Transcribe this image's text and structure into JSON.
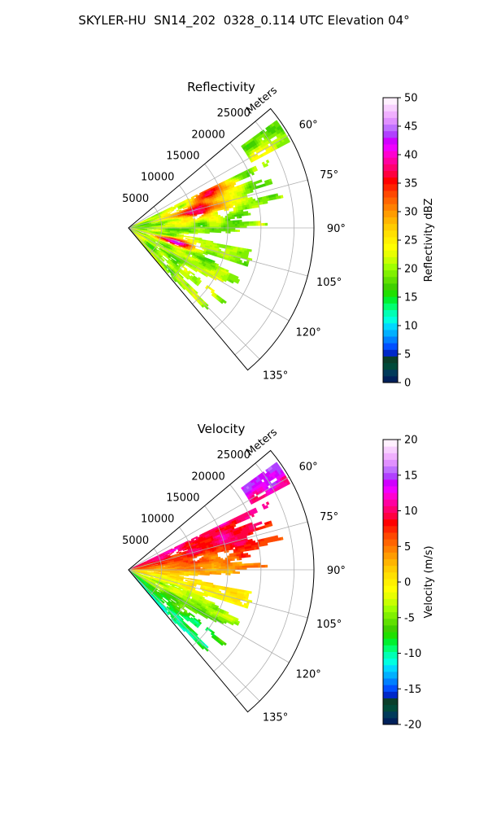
{
  "suptitle": "SKYLER-HU  SN14_202  0328_0.114 UTC Elevation 04°",
  "chart_data": [
    {
      "type": "heatmap",
      "projection": "polar-sector",
      "title": "Reflectivity",
      "radial_label": "Meters",
      "theta_range_deg": [
        50,
        140
      ],
      "r_range_m": [
        0,
        28000
      ],
      "radial_ticks": [
        5000,
        10000,
        15000,
        20000,
        25000
      ],
      "angle_ticks": [
        60,
        75,
        90,
        105,
        120,
        135
      ],
      "angle_tick_labels": [
        "60°",
        "75°",
        "90°",
        "105°",
        "120°",
        "135°"
      ],
      "grid": true,
      "colorbar": {
        "label": "Reflectivity dBZ",
        "vmin": 0,
        "vmax": 50,
        "ticks": [
          0,
          5,
          10,
          15,
          20,
          25,
          30,
          35,
          40,
          45,
          50
        ],
        "colors": [
          "#00205a",
          "#003a5a",
          "#004a3a",
          "#0a3e2a",
          "#0028c8",
          "#0050ff",
          "#0080ff",
          "#00b0ff",
          "#00d8ff",
          "#00ffe0",
          "#00ffb4",
          "#00ff70",
          "#00f030",
          "#20e000",
          "#40d000",
          "#60e000",
          "#80f000",
          "#a0ff00",
          "#c8ff00",
          "#e8ff00",
          "#ffff00",
          "#fff000",
          "#ffe000",
          "#ffcc00",
          "#ffb400",
          "#ff9c00",
          "#ff8000",
          "#ff6400",
          "#ff4800",
          "#ff2400",
          "#ff0000",
          "#ff0040",
          "#ff0070",
          "#ff00a0",
          "#ff00d0",
          "#f000ff",
          "#d000ff",
          "#b040ff",
          "#c070ff",
          "#e090ff",
          "#f0b0ff",
          "#f8d0ff",
          "#fff0ff"
        ]
      },
      "field": "reflectivity",
      "observed_range_dbz": [
        10,
        40
      ]
    },
    {
      "type": "heatmap",
      "projection": "polar-sector",
      "title": "Velocity",
      "radial_label": "Meters",
      "theta_range_deg": [
        50,
        140
      ],
      "r_range_m": [
        0,
        28000
      ],
      "radial_ticks": [
        5000,
        10000,
        15000,
        20000,
        25000
      ],
      "angle_ticks": [
        60,
        75,
        90,
        105,
        120,
        135
      ],
      "angle_tick_labels": [
        "60°",
        "75°",
        "90°",
        "105°",
        "120°",
        "135°"
      ],
      "grid": true,
      "colorbar": {
        "label": "Velocity (m/s)",
        "vmin": -20,
        "vmax": 20,
        "ticks": [
          -20,
          -15,
          -10,
          -5,
          0,
          5,
          10,
          15,
          20
        ],
        "colors": [
          "#00205a",
          "#003a5a",
          "#004a3a",
          "#0a3e2a",
          "#0028c8",
          "#0050ff",
          "#0080ff",
          "#00b0ff",
          "#00d8ff",
          "#00ffe0",
          "#00ffb4",
          "#00ff70",
          "#00f030",
          "#20e000",
          "#40d000",
          "#60e000",
          "#80f000",
          "#a0ff00",
          "#c8ff00",
          "#e8ff00",
          "#ffff00",
          "#fff000",
          "#ffe000",
          "#ffcc00",
          "#ffb400",
          "#ff9c00",
          "#ff8000",
          "#ff6400",
          "#ff4800",
          "#ff2400",
          "#ff0000",
          "#ff0040",
          "#ff0070",
          "#ff00a0",
          "#ff00d0",
          "#f000ff",
          "#d000ff",
          "#b040ff",
          "#c070ff",
          "#e090ff",
          "#f0b0ff",
          "#f8d0ff",
          "#fff0ff"
        ]
      },
      "field": "velocity",
      "observed_range_ms": [
        -12,
        16
      ]
    }
  ]
}
